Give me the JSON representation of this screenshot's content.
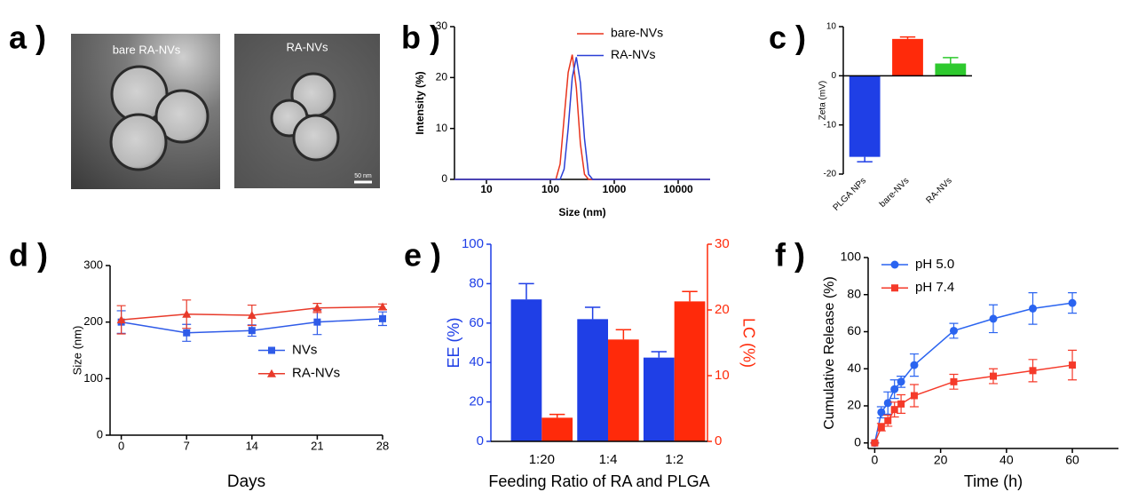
{
  "figure": {
    "panel_labels": [
      "a )",
      "b )",
      "c )",
      "d )",
      "e )",
      "f )"
    ],
    "images": [
      {
        "caption": "bare RA-NVs"
      },
      {
        "caption": "RA-NVs",
        "scale_bar": "50 nm"
      }
    ]
  },
  "chart_data": [
    {
      "type": "line",
      "xlabel": "Size (nm)",
      "ylabel": "Intensity (%)",
      "log_x": true,
      "x": [
        3.16,
        122,
        142,
        164,
        190,
        220,
        255,
        295,
        342,
        396,
        459,
        31623
      ],
      "series": [
        {
          "name": "bare-NVs",
          "color": "#e8331c",
          "values": [
            0,
            0,
            3,
            12,
            21,
            24.5,
            18,
            7,
            1,
            0,
            0,
            0
          ]
        },
        {
          "name": "RA-NVs",
          "color": "#2a3fd6",
          "values": [
            0,
            0,
            0,
            2,
            10,
            20,
            24,
            19,
            8,
            1,
            0,
            0
          ]
        }
      ],
      "xlim": [
        3.16,
        31623
      ],
      "xticks": [
        10,
        100,
        1000,
        10000
      ],
      "ylim": [
        0,
        30
      ],
      "yticks": [
        0,
        10,
        20,
        30
      ],
      "legend": "upper right"
    },
    {
      "type": "bar",
      "ylabel": "Zeta (mV)",
      "categories": [
        "PLGA NPs",
        "bare-NVs",
        "RA-NVs"
      ],
      "values": [
        -16.5,
        7.5,
        2.5
      ],
      "errors": [
        1,
        0.4,
        1.2
      ],
      "colors": [
        "#1f3fe6",
        "#ff2a0a",
        "#2ec92e"
      ],
      "ylim": [
        -20,
        10
      ],
      "yticks": [
        -20,
        -10,
        0,
        10
      ]
    },
    {
      "type": "line",
      "xlabel": "Days",
      "ylabel": "Size (nm)",
      "x": [
        0,
        7,
        14,
        21,
        28
      ],
      "series": [
        {
          "name": "NVs",
          "color": "#2f5be8",
          "marker": "square",
          "values": [
            200,
            181,
            185,
            200,
            206
          ],
          "errors": [
            20,
            15,
            10,
            22,
            12
          ]
        },
        {
          "name": "RA-NVs",
          "color": "#e83a2a",
          "marker": "triangle",
          "values": [
            204,
            214,
            212,
            225,
            227
          ],
          "errors": [
            25,
            25,
            18,
            8,
            5
          ]
        }
      ],
      "xlim": [
        -1.2,
        28
      ],
      "xticks": [
        0,
        7,
        14,
        21,
        28
      ],
      "ylim": [
        0,
        300
      ],
      "yticks": [
        0,
        100,
        200,
        300
      ],
      "legend": "center right"
    },
    {
      "type": "bar",
      "xlabel": "Feeding Ratio of RA and PLGA",
      "ylabel": "EE (%)",
      "y2label": "LC (%)",
      "categories": [
        "1:20",
        "1:4",
        "1:2"
      ],
      "series": [
        {
          "color": "#1f3fe6",
          "values": [
            72,
            62,
            42.5
          ],
          "errors": [
            8,
            6,
            3
          ]
        },
        {
          "color": "#ff2a0a",
          "axis": "y2",
          "values": [
            3.6,
            15.5,
            21.3
          ],
          "errors": [
            0.5,
            1.5,
            1.5
          ]
        }
      ],
      "ylim": [
        0,
        100
      ],
      "yticks": [
        0,
        20,
        40,
        60,
        80,
        100
      ],
      "y2lim": [
        0,
        30
      ],
      "y2ticks": [
        0,
        10,
        20,
        30
      ]
    },
    {
      "type": "line",
      "xlabel": "Time (h)",
      "ylabel": "Cumulative Release (%)",
      "x": [
        0,
        2,
        4,
        6,
        8,
        12,
        24,
        36,
        48,
        60
      ],
      "series": [
        {
          "name": "pH 5.0",
          "color": "#2a64f0",
          "marker": "circle",
          "values": [
            0,
            16.5,
            21.5,
            29,
            33,
            42,
            60.5,
            67,
            72.5,
            75.5
          ],
          "errors": [
            0,
            3,
            6,
            5,
            3,
            6,
            4,
            7.5,
            8.5,
            5.5
          ]
        },
        {
          "name": "pH 7.4",
          "color": "#f53a2a",
          "marker": "square",
          "values": [
            0,
            8.5,
            12,
            18,
            21,
            25.5,
            33,
            36,
            39,
            42
          ],
          "errors": [
            0,
            2,
            3,
            4,
            5,
            6,
            4,
            4,
            6,
            8
          ]
        }
      ],
      "xlim": [
        -2,
        74
      ],
      "xticks": [
        0,
        20,
        40,
        60
      ],
      "ylim": [
        -3,
        100
      ],
      "yticks": [
        0,
        20,
        40,
        60,
        80,
        100
      ],
      "legend": "upper left"
    }
  ]
}
